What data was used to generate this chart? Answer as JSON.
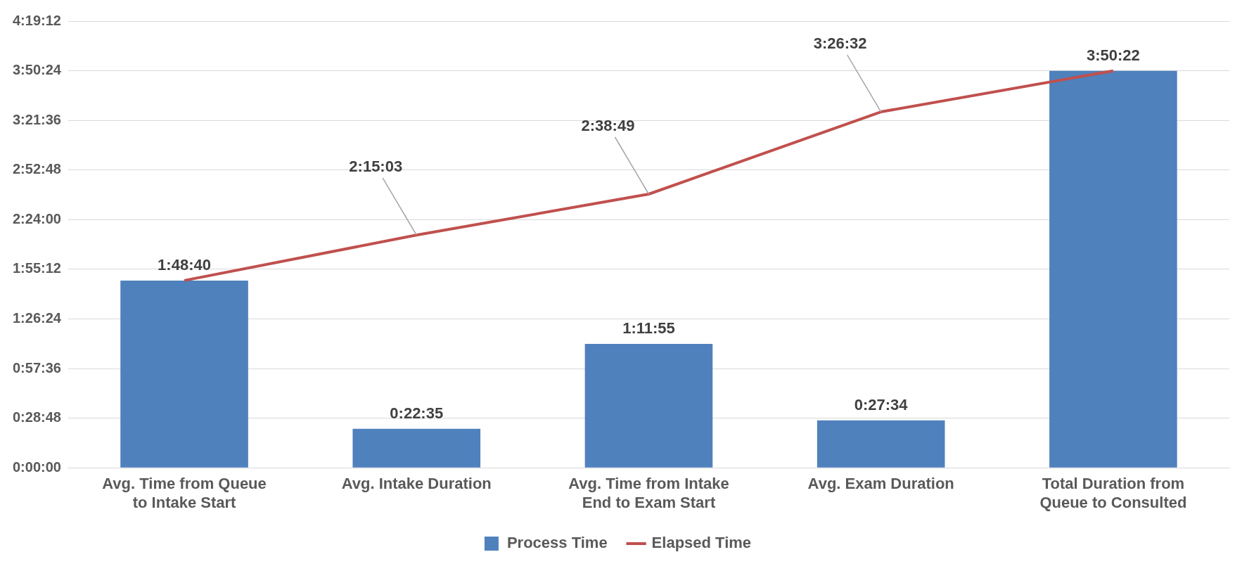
{
  "chart_data": {
    "type": "bar",
    "categories": [
      "Avg. Time from Queue to Intake Start",
      "Avg. Intake Duration",
      "Avg. Time from Intake End to Exam Start",
      "Avg. Exam Duration",
      "Total Duration from Queue to Consulted"
    ],
    "series": [
      {
        "name": "Process Time",
        "color": "#4f81bd",
        "values": [
          6520,
          1355,
          4315,
          1654,
          13822
        ],
        "value_labels": [
          "1:48:40",
          "0:22:35",
          "1:11:55",
          "0:27:34",
          "3:50:22"
        ]
      },
      {
        "name": "Elapsed Time",
        "type": "line",
        "color": "#c0504d",
        "values": [
          6520,
          8103,
          9529,
          12392,
          13822
        ],
        "value_labels": [
          null,
          "2:15:03",
          "2:38:49",
          "3:26:32",
          null
        ]
      }
    ],
    "ylim": [
      0,
      15552
    ],
    "yticks": [
      {
        "value": 0,
        "label": "0:00:00"
      },
      {
        "value": 1728,
        "label": "0:28:48"
      },
      {
        "value": 3456,
        "label": "0:57:36"
      },
      {
        "value": 5184,
        "label": "1:26:24"
      },
      {
        "value": 6912,
        "label": "1:55:12"
      },
      {
        "value": 8640,
        "label": "2:24:00"
      },
      {
        "value": 10368,
        "label": "2:52:48"
      },
      {
        "value": 12096,
        "label": "3:21:36"
      },
      {
        "value": 13824,
        "label": "3:50:24"
      },
      {
        "value": 15552,
        "label": "4:19:12"
      }
    ],
    "grid": "y",
    "legend": "bottom"
  }
}
